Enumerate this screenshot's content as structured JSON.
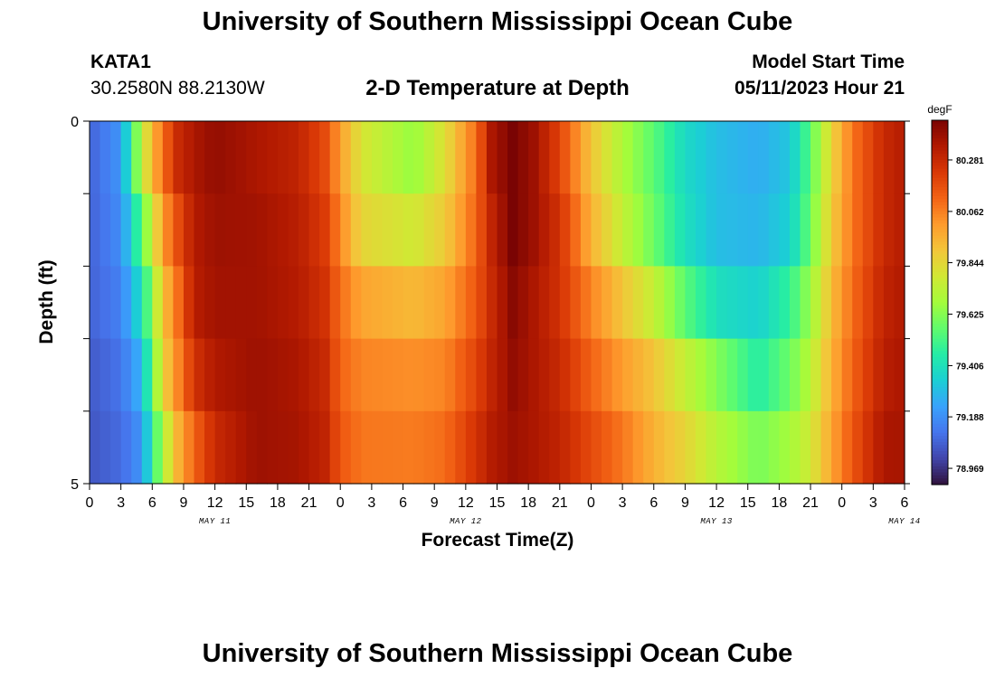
{
  "titles": {
    "top": "University of Southern Mississippi Ocean Cube",
    "bottom": "University of Southern Mississippi Ocean Cube"
  },
  "header": {
    "station": "KATA1",
    "coordinates": "30.2580N  88.2130W",
    "subtitle": "2-D Temperature at Depth",
    "model_start_label": "Model Start Time",
    "model_start_value": "05/11/2023 Hour 21"
  },
  "chart_data": {
    "type": "heatmap",
    "title": "2-D Temperature at Depth",
    "xlabel": "Forecast Time(Z)",
    "ylabel": "Depth (ft)",
    "x_tick_labels": [
      "0",
      "3",
      "6",
      "9",
      "12",
      "15",
      "18",
      "21",
      "0",
      "3",
      "6",
      "9",
      "12",
      "15",
      "18",
      "21",
      "0",
      "3",
      "6",
      "9",
      "12",
      "15",
      "18",
      "21",
      "0",
      "3",
      "6"
    ],
    "x_day_labels": [
      {
        "label": "MAY 11",
        "at_hour": 12
      },
      {
        "label": "MAY 12",
        "at_hour": 36
      },
      {
        "label": "MAY 13",
        "at_hour": 60
      },
      {
        "label": "MAY 14",
        "at_hour": 78
      }
    ],
    "x_range_hours": [
      0,
      78
    ],
    "y_tick_labels": [
      {
        "label": "0",
        "depth": 0
      },
      {
        "label": "5",
        "depth": 5
      }
    ],
    "y_range_ft": [
      0,
      5
    ],
    "depth_layers_ft": [
      0,
      1,
      2,
      3,
      4
    ],
    "colorbar": {
      "unit": "degF",
      "min": 78.9,
      "max": 80.45,
      "tick_labels": [
        "80.281",
        "80.062",
        "79.844",
        "79.625",
        "79.406",
        "79.188",
        "78.969"
      ],
      "tick_values": [
        80.281,
        80.062,
        79.844,
        79.625,
        79.406,
        79.188,
        78.969
      ]
    },
    "colormap": [
      "#30123b",
      "#4145ab",
      "#4675ed",
      "#39a2fc",
      "#1bcfd4",
      "#24eca6",
      "#61fc6c",
      "#a4fc3b",
      "#d1e834",
      "#f3c63a",
      "#fe9b2d",
      "#f36315",
      "#d93806",
      "#b11901",
      "#7a0403"
    ],
    "keyframes": [
      {
        "hour": 0,
        "temps": [
          79.08,
          79.08,
          79.08,
          79.06,
          79.05
        ]
      },
      {
        "hour": 3,
        "temps": [
          79.2,
          79.18,
          79.15,
          79.12,
          79.1
        ]
      },
      {
        "hour": 5,
        "temps": [
          79.75,
          79.55,
          79.4,
          79.28,
          79.2
        ]
      },
      {
        "hour": 7,
        "temps": [
          80.1,
          80.0,
          79.9,
          79.85,
          79.7
        ]
      },
      {
        "hour": 8.5,
        "temps": [
          80.28,
          80.18,
          80.1,
          80.05,
          79.95
        ]
      },
      {
        "hour": 10,
        "temps": [
          80.35,
          80.33,
          80.32,
          80.25,
          80.12
        ]
      },
      {
        "hour": 12,
        "temps": [
          80.4,
          80.38,
          80.37,
          80.34,
          80.28
        ]
      },
      {
        "hour": 16,
        "temps": [
          80.35,
          80.37,
          80.37,
          80.38,
          80.38
        ]
      },
      {
        "hour": 20,
        "temps": [
          80.3,
          80.32,
          80.33,
          80.35,
          80.36
        ]
      },
      {
        "hour": 22.5,
        "temps": [
          80.18,
          80.22,
          80.25,
          80.28,
          80.3
        ]
      },
      {
        "hour": 24,
        "temps": [
          80.0,
          80.05,
          80.1,
          80.12,
          80.15
        ]
      },
      {
        "hour": 26,
        "temps": [
          79.8,
          79.85,
          79.98,
          80.05,
          80.08
        ]
      },
      {
        "hour": 31,
        "temps": [
          79.65,
          79.78,
          79.93,
          80.03,
          80.07
        ]
      },
      {
        "hour": 34,
        "temps": [
          79.82,
          79.88,
          79.98,
          80.05,
          80.1
        ]
      },
      {
        "hour": 37,
        "temps": [
          80.1,
          80.12,
          80.15,
          80.2,
          80.25
        ]
      },
      {
        "hour": 38.5,
        "temps": [
          80.35,
          80.3,
          80.28,
          80.3,
          80.33
        ]
      },
      {
        "hour": 40.5,
        "temps": [
          80.45,
          80.45,
          80.42,
          80.4,
          80.38
        ]
      },
      {
        "hour": 42.5,
        "temps": [
          80.38,
          80.38,
          80.35,
          80.35,
          80.35
        ]
      },
      {
        "hour": 45,
        "temps": [
          80.2,
          80.25,
          80.25,
          80.28,
          80.3
        ]
      },
      {
        "hour": 48,
        "temps": [
          79.9,
          79.95,
          80.05,
          80.12,
          80.18
        ]
      },
      {
        "hour": 51,
        "temps": [
          79.7,
          79.75,
          79.9,
          80.0,
          80.08
        ]
      },
      {
        "hour": 54,
        "temps": [
          79.55,
          79.58,
          79.75,
          79.9,
          79.95
        ]
      },
      {
        "hour": 57,
        "temps": [
          79.38,
          79.4,
          79.55,
          79.75,
          79.85
        ]
      },
      {
        "hour": 60,
        "temps": [
          79.3,
          79.3,
          79.4,
          79.62,
          79.72
        ]
      },
      {
        "hour": 64,
        "temps": [
          79.26,
          79.28,
          79.35,
          79.45,
          79.6
        ]
      },
      {
        "hour": 67,
        "temps": [
          79.32,
          79.35,
          79.48,
          79.58,
          79.68
        ]
      },
      {
        "hour": 69,
        "temps": [
          79.55,
          79.58,
          79.66,
          79.72,
          79.78
        ]
      },
      {
        "hour": 71,
        "temps": [
          79.85,
          79.88,
          79.92,
          79.95,
          79.98
        ]
      },
      {
        "hour": 73,
        "temps": [
          80.08,
          80.08,
          80.1,
          80.12,
          80.15
        ]
      },
      {
        "hour": 76,
        "temps": [
          80.28,
          80.28,
          80.3,
          80.32,
          80.35
        ]
      },
      {
        "hour": 78,
        "temps": [
          80.33,
          80.33,
          80.34,
          80.35,
          80.36
        ]
      }
    ]
  }
}
